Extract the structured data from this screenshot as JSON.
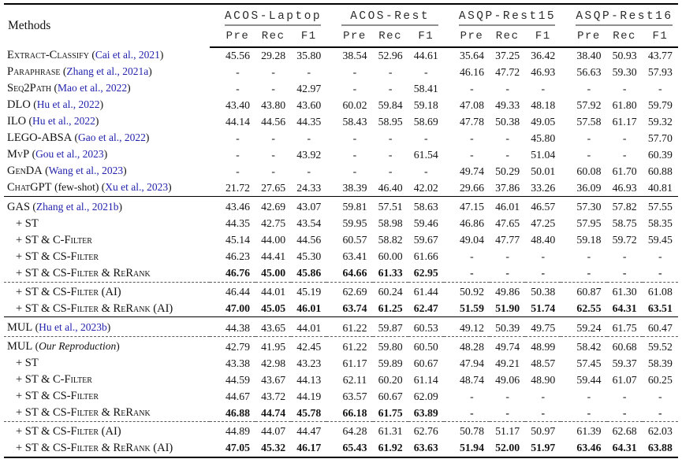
{
  "colors": {
    "citation_link": "#2323ad"
  },
  "table": {
    "methods_header": "Methods",
    "groups": [
      {
        "name": "ACOS-Laptop",
        "cols": [
          "Pre",
          "Rec",
          "F1"
        ]
      },
      {
        "name": "ACOS-Rest",
        "cols": [
          "Pre",
          "Rec",
          "F1"
        ]
      },
      {
        "name": "ASQP-Rest15",
        "cols": [
          "Pre",
          "Rec",
          "F1"
        ]
      },
      {
        "name": "ASQP-Rest16",
        "cols": [
          "Pre",
          "Rec",
          "F1"
        ]
      }
    ],
    "sections": [
      {
        "rows": [
          {
            "label": "Extract-Classify",
            "cite": "Cai et al., 2021",
            "values": [
              "45.56",
              "29.28",
              "35.80",
              "38.54",
              "52.96",
              "44.61",
              "35.64",
              "37.25",
              "36.42",
              "38.40",
              "50.93",
              "43.77"
            ]
          },
          {
            "label": "Paraphrase",
            "cite": "Zhang et al., 2021a",
            "values": [
              "-",
              "-",
              "-",
              "-",
              "-",
              "-",
              "46.16",
              "47.72",
              "46.93",
              "56.63",
              "59.30",
              "57.93"
            ]
          },
          {
            "label": "Seq2Path",
            "cite": "Mao et al., 2022",
            "values": [
              "-",
              "-",
              "42.97",
              "-",
              "-",
              "58.41",
              "-",
              "-",
              "-",
              "-",
              "-",
              "-"
            ]
          },
          {
            "label": "DLO",
            "cite": "Hu et al., 2022",
            "values": [
              "43.40",
              "43.80",
              "43.60",
              "60.02",
              "59.84",
              "59.18",
              "47.08",
              "49.33",
              "48.18",
              "57.92",
              "61.80",
              "59.79"
            ]
          },
          {
            "label": "ILO",
            "cite": "Hu et al., 2022",
            "values": [
              "44.14",
              "44.56",
              "44.35",
              "58.43",
              "58.95",
              "58.69",
              "47.78",
              "50.38",
              "49.05",
              "57.58",
              "61.17",
              "59.32"
            ]
          },
          {
            "label": "LEGO-ABSA",
            "cite": "Gao et al., 2022",
            "values": [
              "-",
              "-",
              "-",
              "-",
              "-",
              "-",
              "-",
              "-",
              "45.80",
              "-",
              "-",
              "57.70"
            ]
          },
          {
            "label": "MvP",
            "cite": "Gou et al., 2023",
            "values": [
              "-",
              "-",
              "43.92",
              "-",
              "-",
              "61.54",
              "-",
              "-",
              "51.04",
              "-",
              "-",
              "60.39"
            ]
          },
          {
            "label": "GenDA",
            "cite": "Wang et al., 2023",
            "values": [
              "-",
              "-",
              "-",
              "-",
              "-",
              "-",
              "49.74",
              "50.29",
              "50.01",
              "60.08",
              "61.70",
              "60.88"
            ]
          },
          {
            "label": "ChatGPT",
            "suffix": "(few-shot)",
            "cite": "Xu et al., 2023",
            "values": [
              "21.72",
              "27.65",
              "24.33",
              "38.39",
              "46.40",
              "42.02",
              "29.66",
              "37.86",
              "33.26",
              "36.09",
              "46.93",
              "40.81"
            ]
          }
        ]
      },
      {
        "rows": [
          {
            "label": "GAS",
            "cite": "Zhang et al., 2021b",
            "values": [
              "43.46",
              "42.69",
              "43.07",
              "59.81",
              "57.51",
              "58.63",
              "47.15",
              "46.01",
              "46.57",
              "57.30",
              "57.82",
              "57.55"
            ]
          },
          {
            "label": "+ ST",
            "indent": true,
            "values": [
              "44.35",
              "42.75",
              "43.54",
              "59.95",
              "58.98",
              "59.46",
              "46.86",
              "47.65",
              "47.25",
              "57.95",
              "58.75",
              "58.35"
            ]
          },
          {
            "label": "+ ST & C-Filter",
            "indent": true,
            "values": [
              "45.14",
              "44.00",
              "44.56",
              "60.57",
              "58.82",
              "59.67",
              "49.04",
              "47.77",
              "48.40",
              "59.18",
              "59.72",
              "59.45"
            ]
          },
          {
            "label": "+ ST & CS-Filter",
            "indent": true,
            "values": [
              "46.23",
              "44.41",
              "45.30",
              "63.41",
              "60.00",
              "61.66",
              "-",
              "-",
              "-",
              "-",
              "-",
              "-"
            ]
          },
          {
            "label": "+ ST & CS-Filter & ReRank",
            "indent": true,
            "bold": true,
            "values": [
              "46.76",
              "45.00",
              "45.86",
              "64.66",
              "61.33",
              "62.95",
              "-",
              "-",
              "-",
              "-",
              "-",
              "-"
            ]
          },
          {
            "label": "+ ST & CS-Filter (AI)",
            "indent": true,
            "dashed_above": true,
            "values": [
              "46.44",
              "44.01",
              "45.19",
              "62.69",
              "60.24",
              "61.44",
              "50.92",
              "49.86",
              "50.38",
              "60.87",
              "61.30",
              "61.08"
            ]
          },
          {
            "label": "+ ST & CS-Filter & ReRank (AI)",
            "indent": true,
            "bold": true,
            "values": [
              "47.00",
              "45.05",
              "46.01",
              "63.74",
              "61.25",
              "62.47",
              "51.59",
              "51.90",
              "51.74",
              "62.55",
              "64.31",
              "63.51"
            ]
          }
        ]
      },
      {
        "rows": [
          {
            "label": "MUL",
            "cite": "Hu et al., 2023b",
            "values": [
              "44.38",
              "43.65",
              "44.01",
              "61.22",
              "59.87",
              "60.53",
              "49.12",
              "50.39",
              "49.75",
              "59.24",
              "61.75",
              "60.47"
            ]
          },
          {
            "label": "MUL",
            "suffix_italic": "Our Reproduction",
            "dashed_above": true,
            "values": [
              "42.79",
              "41.95",
              "42.45",
              "61.22",
              "59.80",
              "60.50",
              "48.28",
              "49.74",
              "48.99",
              "58.42",
              "60.68",
              "59.52"
            ]
          },
          {
            "label": "+ ST",
            "indent": true,
            "values": [
              "43.38",
              "42.98",
              "43.23",
              "61.17",
              "59.89",
              "60.67",
              "47.94",
              "49.21",
              "48.57",
              "57.45",
              "59.37",
              "58.39"
            ]
          },
          {
            "label": "+ ST & C-Filter",
            "indent": true,
            "values": [
              "44.59",
              "43.67",
              "44.13",
              "62.11",
              "60.20",
              "61.14",
              "48.74",
              "49.06",
              "48.90",
              "59.44",
              "61.07",
              "60.25"
            ]
          },
          {
            "label": "+ ST & CS-Filter",
            "indent": true,
            "values": [
              "44.67",
              "43.72",
              "44.19",
              "63.57",
              "60.67",
              "62.09",
              "-",
              "-",
              "-",
              "-",
              "-",
              "-"
            ]
          },
          {
            "label": "+ ST & CS-Filter & ReRank",
            "indent": true,
            "bold": true,
            "values": [
              "46.88",
              "44.74",
              "45.78",
              "66.18",
              "61.75",
              "63.89",
              "-",
              "-",
              "-",
              "-",
              "-",
              "-"
            ]
          },
          {
            "label": "+ ST & CS-Filter (AI)",
            "indent": true,
            "dashed_above": true,
            "values": [
              "44.89",
              "44.07",
              "44.47",
              "64.28",
              "61.31",
              "62.76",
              "50.78",
              "51.17",
              "50.97",
              "61.39",
              "62.68",
              "62.03"
            ]
          },
          {
            "label": "+ ST & CS-Filter & ReRank (AI)",
            "indent": true,
            "bold": true,
            "values": [
              "47.05",
              "45.32",
              "46.17",
              "65.43",
              "61.92",
              "63.63",
              "51.94",
              "52.00",
              "51.97",
              "63.46",
              "64.31",
              "63.88"
            ]
          }
        ]
      }
    ]
  }
}
